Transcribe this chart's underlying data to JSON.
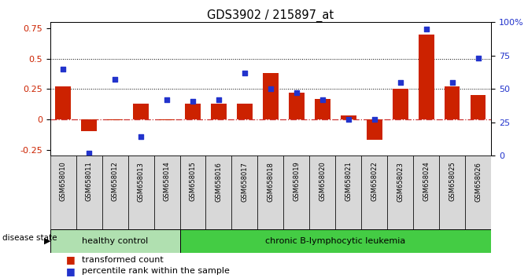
{
  "title": "GDS3902 / 215897_at",
  "samples": [
    "GSM658010",
    "GSM658011",
    "GSM658012",
    "GSM658013",
    "GSM658014",
    "GSM658015",
    "GSM658016",
    "GSM658017",
    "GSM658018",
    "GSM658019",
    "GSM658020",
    "GSM658021",
    "GSM658022",
    "GSM658023",
    "GSM658024",
    "GSM658025",
    "GSM658026"
  ],
  "transformed_count": [
    0.27,
    -0.1,
    -0.01,
    0.13,
    -0.01,
    0.13,
    0.13,
    0.13,
    0.38,
    0.22,
    0.17,
    0.03,
    -0.17,
    0.25,
    0.7,
    0.27,
    0.2
  ],
  "percentile_rank_pct": [
    65,
    2,
    57,
    14,
    42,
    41,
    42,
    62,
    50,
    47,
    42,
    27,
    27,
    55,
    95,
    55,
    73
  ],
  "healthy_count": 5,
  "bar_color": "#cc2200",
  "dot_color": "#2233cc",
  "zero_line_color": "#cc3333",
  "tick_label_bg": "#d8d8d8",
  "healthy_bg": "#b0e0b0",
  "leukemia_bg": "#44cc44",
  "ylim_left": [
    -0.3,
    0.8
  ],
  "ylim_right": [
    0,
    100
  ],
  "yticks_left": [
    -0.25,
    0.0,
    0.25,
    0.5,
    0.75
  ],
  "yticks_right": [
    0,
    25,
    50,
    75,
    100
  ],
  "hlines": [
    0.25,
    0.5
  ]
}
